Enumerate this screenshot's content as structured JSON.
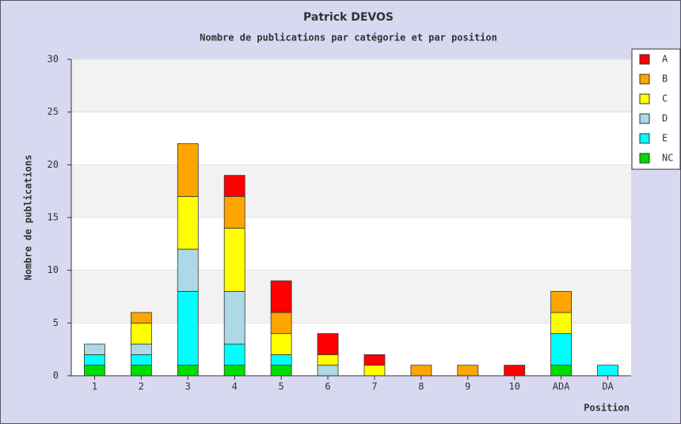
{
  "chart_data": {
    "type": "stacked_bar",
    "title": "Patrick DEVOS",
    "subtitle": "Nombre de publications par catégorie et par position",
    "y_label": "Nombre de publications",
    "x_label": "Position",
    "categories": [
      "1",
      "2",
      "3",
      "4",
      "5",
      "6",
      "7",
      "8",
      "9",
      "10",
      "ADA",
      "DA"
    ],
    "series": [
      {
        "name": "NC",
        "color": "#00dd00",
        "values": [
          1,
          1,
          1,
          1,
          1,
          0,
          0,
          0,
          0,
          0,
          1,
          0
        ]
      },
      {
        "name": "E",
        "color": "#00ffff",
        "values": [
          1,
          1,
          7,
          2,
          1,
          0,
          0,
          0,
          0,
          0,
          3,
          1
        ]
      },
      {
        "name": "D",
        "color": "#add8e6",
        "values": [
          1,
          1,
          4,
          5,
          0,
          1,
          0,
          0,
          0,
          0,
          0,
          0
        ]
      },
      {
        "name": "C",
        "color": "#ffff00",
        "values": [
          0,
          2,
          5,
          6,
          2,
          1,
          1,
          0,
          0,
          0,
          2,
          0
        ]
      },
      {
        "name": "B",
        "color": "#ffa500",
        "values": [
          0,
          1,
          5,
          3,
          2,
          0,
          0,
          1,
          1,
          0,
          2,
          0
        ]
      },
      {
        "name": "A",
        "color": "#ff0000",
        "values": [
          0,
          0,
          0,
          2,
          3,
          2,
          1,
          0,
          0,
          1,
          0,
          0
        ]
      }
    ],
    "ylim": [
      0,
      30
    ],
    "yticks": [
      0,
      5,
      10,
      15,
      20,
      25,
      30
    ],
    "grid": true,
    "legend": "right"
  }
}
